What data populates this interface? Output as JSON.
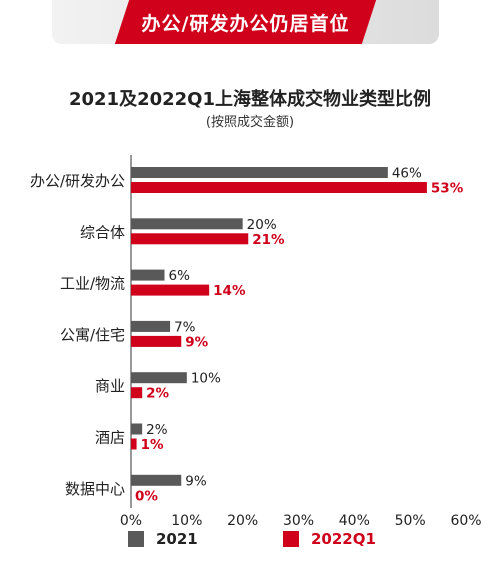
{
  "banner": {
    "text": "办公/研发办公仍居首位"
  },
  "colors": {
    "series2021": "#595959",
    "series2022": "#d0021b",
    "banner": "#d0021b",
    "axis": "#333333"
  },
  "chart_data": {
    "type": "bar",
    "orientation": "horizontal",
    "title": "2021及2022Q1上海整体成交物业类型比例",
    "subtitle": "(按照成交金额)",
    "categories": [
      "办公/研发办公",
      "综合体",
      "工业/物流",
      "公寓/住宅",
      "商业",
      "酒店",
      "数据中心"
    ],
    "series": [
      {
        "name": "2021",
        "values": [
          46,
          20,
          6,
          7,
          10,
          2,
          9
        ],
        "labels": [
          "46%",
          "20%",
          "6%",
          "7%",
          "10%",
          "2%",
          "9%"
        ]
      },
      {
        "name": "2022Q1",
        "values": [
          53,
          21,
          14,
          9,
          2,
          1,
          0
        ],
        "labels": [
          "53%",
          "21%",
          "14%",
          "9%",
          "2%",
          "1%",
          "0%"
        ]
      }
    ],
    "xlim": [
      0,
      60
    ],
    "xticks": [
      "0%",
      "10%",
      "20%",
      "30%",
      "40%",
      "50%",
      "60%"
    ],
    "grid": false,
    "legend": "bottom"
  }
}
